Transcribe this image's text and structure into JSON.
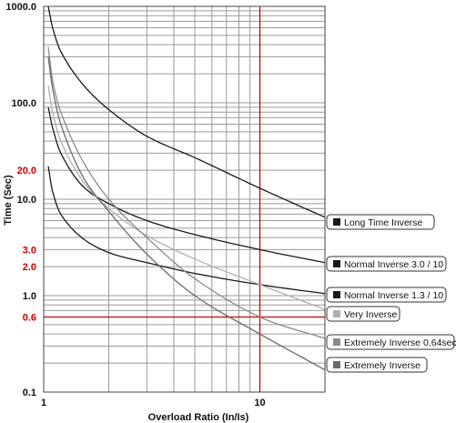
{
  "chart_data": {
    "type": "line",
    "x_scale": "log",
    "y_scale": "log",
    "xlim": [
      1,
      20
    ],
    "ylim": [
      0.1,
      1000
    ],
    "xlabel": "Overload Ratio  (In/Is)",
    "ylabel": "Time (Sec)",
    "x_ticks": [
      {
        "value": 1,
        "label": "1"
      },
      {
        "value": 10,
        "label": "10"
      }
    ],
    "y_ticks": [
      {
        "value": 1000,
        "label": "1000.0",
        "color": "#111111"
      },
      {
        "value": 100,
        "label": "100.0",
        "color": "#111111"
      },
      {
        "value": 20,
        "label": "20.0",
        "color": "#cc0000"
      },
      {
        "value": 10,
        "label": "10.0",
        "color": "#111111"
      },
      {
        "value": 3,
        "label": "3.0",
        "color": "#cc0000"
      },
      {
        "value": 2,
        "label": "2.0",
        "color": "#cc0000"
      },
      {
        "value": 1,
        "label": "1.0",
        "color": "#111111"
      },
      {
        "value": 0.6,
        "label": "0.6",
        "color": "#cc0000"
      },
      {
        "value": 0.1,
        "label": "0.1",
        "color": "#111111"
      }
    ],
    "grid": true,
    "reference_lines": [
      {
        "axis": "x",
        "value": 10,
        "color": "#cc0000"
      },
      {
        "axis": "y",
        "value": 0.6,
        "color": "#cc0000"
      }
    ],
    "series": [
      {
        "name": "Long Time Inverse",
        "color": "#1a1a1a",
        "x": [
          1.05,
          1.1,
          1.2,
          1.5,
          2,
          3,
          5,
          10,
          20
        ],
        "y": [
          1000,
          600,
          340,
          160,
          85,
          45,
          27,
          13,
          6.5
        ]
      },
      {
        "name": "Normal Inverse 3.0 / 10",
        "color": "#1a1a1a",
        "x": [
          1.05,
          1.1,
          1.2,
          1.5,
          2,
          3,
          5,
          10,
          20
        ],
        "y": [
          90,
          55,
          30,
          14,
          9,
          6,
          4.3,
          3,
          2.2
        ]
      },
      {
        "name": "Normal Inverse 1.3 / 10",
        "color": "#1a1a1a",
        "x": [
          1.05,
          1.1,
          1.2,
          1.5,
          2,
          3,
          5,
          10,
          20
        ],
        "y": [
          22,
          12,
          7,
          4,
          2.8,
          2.2,
          1.7,
          1.3,
          1.05
        ]
      },
      {
        "name": "Very Inverse",
        "color": "#b0b0b0",
        "x": [
          1.05,
          1.1,
          1.2,
          1.5,
          2,
          3,
          5,
          10,
          20
        ],
        "y": [
          150,
          80,
          40,
          16,
          8,
          4.2,
          2.4,
          1.3,
          0.72
        ]
      },
      {
        "name": "Extremely Inverse 0.64sec",
        "color": "#8a8a8a",
        "x": [
          1.05,
          1.1,
          1.2,
          1.5,
          2,
          3,
          5,
          10,
          20
        ],
        "y": [
          380,
          170,
          80,
          26,
          10,
          4,
          1.5,
          0.6,
          0.36
        ]
      },
      {
        "name": "Extremely Inverse",
        "color": "#6a6a6a",
        "x": [
          1.05,
          1.1,
          1.2,
          1.5,
          2,
          3,
          5,
          10,
          20
        ],
        "y": [
          300,
          140,
          60,
          18,
          7.5,
          2.7,
          1.0,
          0.4,
          0.17
        ]
      }
    ]
  }
}
